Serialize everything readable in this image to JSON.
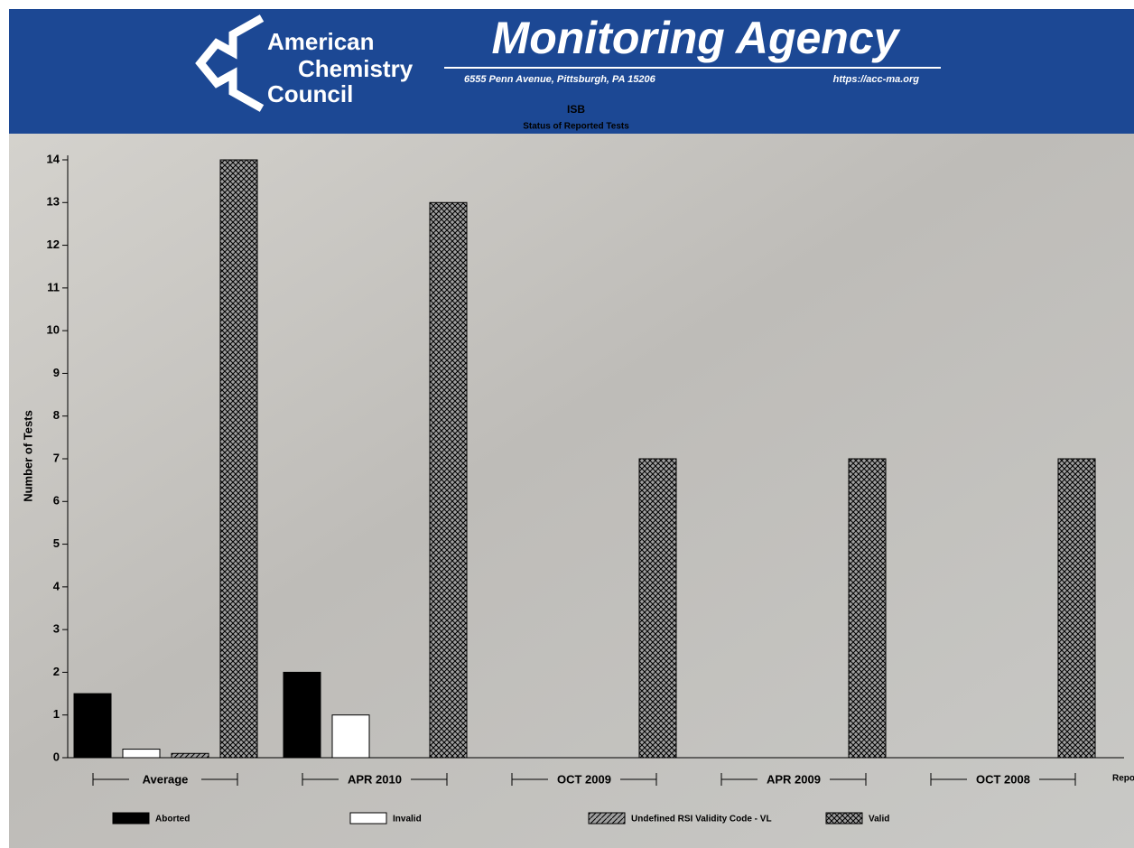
{
  "header": {
    "org_line1": "American",
    "org_line2": "Chemistry",
    "org_line3": "Council",
    "agency": "Monitoring Agency",
    "address": "6555 Penn Avenue, Pittsburgh, PA 15206",
    "url": "https://acc-ma.org"
  },
  "chart_data": {
    "type": "bar",
    "title": "ISB",
    "subtitle": "Status of Reported Tests",
    "y_label": "Number of Tests",
    "x_label": "Reporting Period",
    "categories": [
      "Average",
      "APR 2010",
      "OCT 2009",
      "APR 2009",
      "OCT 2008"
    ],
    "series": [
      {
        "name": "Aborted",
        "color": "#000000",
        "pattern": "solid",
        "values": [
          1.5,
          2,
          0,
          0,
          0
        ]
      },
      {
        "name": "Invalid",
        "color": "#ffffff",
        "pattern": "solid",
        "values": [
          0.2,
          1,
          0,
          0,
          0
        ]
      },
      {
        "name": "Undefined RSI Validity Code - VL",
        "color": "#a0a0a0",
        "pattern": "diagonal",
        "values": [
          0.1,
          0,
          0,
          0,
          0
        ]
      },
      {
        "name": "Valid",
        "color": "#a0a0a0",
        "pattern": "crosshatch",
        "values": [
          14,
          13,
          7,
          7,
          7
        ]
      }
    ],
    "ylim": [
      0,
      14
    ],
    "yticks": [
      0,
      1,
      2,
      3,
      4,
      5,
      6,
      7,
      8,
      9,
      10,
      11,
      12,
      13,
      14
    ]
  }
}
